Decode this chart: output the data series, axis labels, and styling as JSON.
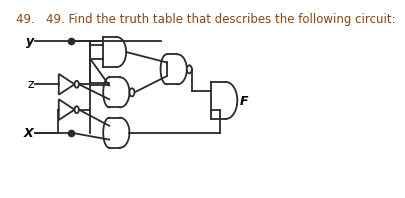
{
  "title": "49.   49. Find the truth table that describes the following circuit:",
  "title_color": "#8B4513",
  "title_fontsize": 8.5,
  "bg_color": "#ffffff",
  "labels": {
    "y": "y",
    "z": "z",
    "x": "X",
    "f": "F"
  },
  "label_color": "#000000",
  "line_color": "#2a2a2a",
  "gate_color": "#2a2a2a"
}
